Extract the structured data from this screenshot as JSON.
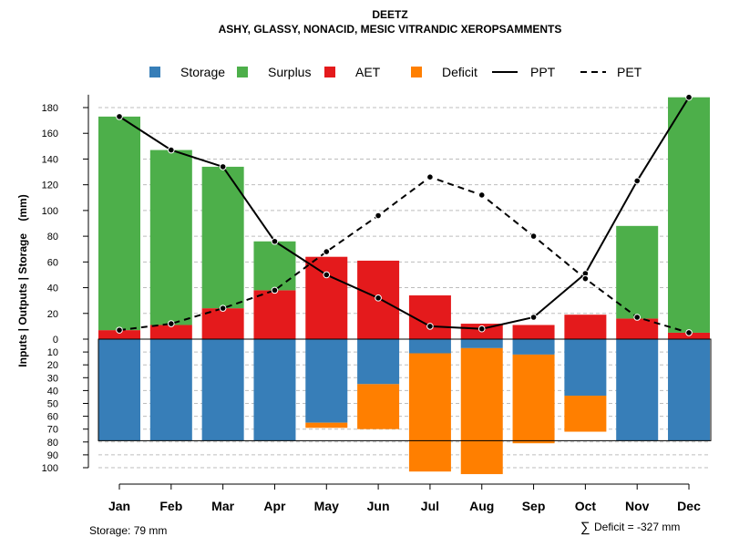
{
  "chart_data": {
    "type": "bar",
    "title": "DEETZ",
    "subtitle": "ASHY, GLASSY, NONACID, MESIC VITRANDIC XEROPSAMMENTS",
    "ylabel": "Inputs | Outputs | Storage    (mm)",
    "ylim_top": [
      0,
      190
    ],
    "ylim_bottom": [
      0,
      100
    ],
    "yticks_top": [
      0,
      20,
      40,
      60,
      80,
      100,
      120,
      140,
      160,
      180
    ],
    "yticks_bottom": [
      0,
      10,
      20,
      30,
      40,
      50,
      60,
      70,
      80,
      90,
      100
    ],
    "categories": [
      "Jan",
      "Feb",
      "Mar",
      "Apr",
      "May",
      "Jun",
      "Jul",
      "Aug",
      "Sep",
      "Oct",
      "Nov",
      "Dec"
    ],
    "series": [
      {
        "name": "Storage",
        "color": "#377eb8",
        "values": [
          79,
          79,
          79,
          79,
          65,
          35,
          11,
          7,
          12,
          44,
          79,
          79
        ]
      },
      {
        "name": "Surplus",
        "color": "#4daf4a",
        "values": [
          166,
          136,
          110,
          38,
          0,
          0,
          0,
          0,
          0,
          0,
          72,
          183
        ]
      },
      {
        "name": "AET",
        "color": "#e41a1c",
        "values": [
          7,
          11,
          24,
          38,
          64,
          61,
          34,
          12,
          11,
          19,
          16,
          5
        ]
      },
      {
        "name": "Deficit",
        "color": "#ff7f00",
        "values": [
          0,
          0,
          0,
          0,
          4,
          35,
          92,
          98,
          69,
          28,
          0,
          0
        ]
      },
      {
        "name": "PPT",
        "color": "#000000",
        "style": "solid",
        "values": [
          173,
          147,
          134,
          76,
          50,
          32,
          10,
          8,
          17,
          51,
          123,
          188
        ]
      },
      {
        "name": "PET",
        "color": "#000000",
        "style": "dashed",
        "values": [
          7,
          12,
          24,
          38,
          68,
          96,
          126,
          112,
          80,
          47,
          17,
          5
        ]
      }
    ],
    "legend": [
      "Storage",
      "Surplus",
      "AET",
      "Deficit",
      "PPT",
      "PET"
    ],
    "legend_position": "top",
    "grid": true
  },
  "footer": {
    "storage": "Storage: 79 mm",
    "deficit_symbol": "∑",
    "deficit": "Deficit = -327 mm"
  }
}
